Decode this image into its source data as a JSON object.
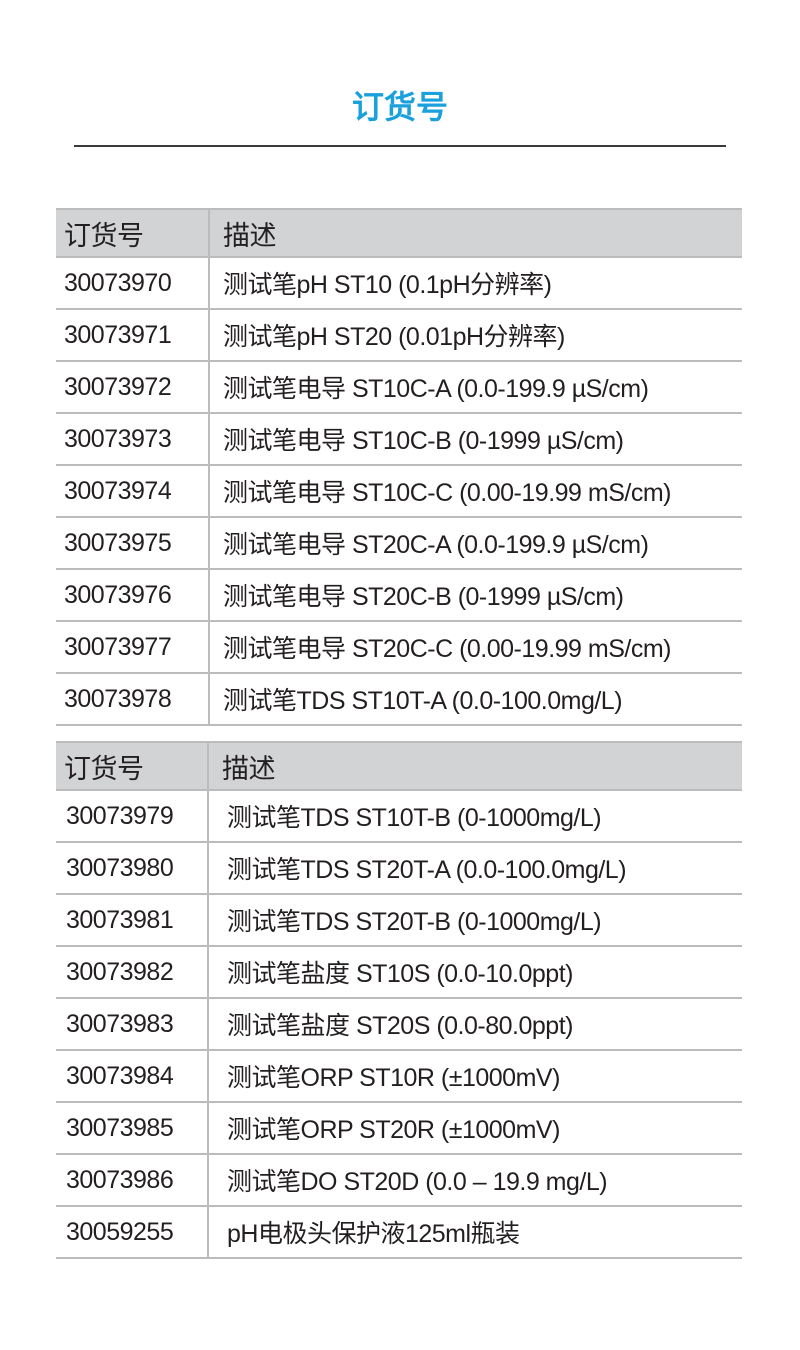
{
  "title": "订货号",
  "tables": [
    {
      "headers": [
        "订货号",
        "描述"
      ],
      "rows": [
        [
          "30073970",
          "测试笔pH ST10 (0.1pH分辨率)"
        ],
        [
          "30073971",
          "测试笔pH ST20 (0.01pH分辨率)"
        ],
        [
          "30073972",
          "测试笔电导 ST10C-A (0.0-199.9 µS/cm)"
        ],
        [
          "30073973",
          "测试笔电导 ST10C-B (0-1999 µS/cm)"
        ],
        [
          "30073974",
          "测试笔电导 ST10C-C (0.00-19.99 mS/cm)"
        ],
        [
          "30073975",
          "测试笔电导 ST20C-A (0.0-199.9 µS/cm)"
        ],
        [
          "30073976",
          "测试笔电导 ST20C-B (0-1999 µS/cm)"
        ],
        [
          "30073977",
          "测试笔电导 ST20C-C (0.00-19.99 mS/cm)"
        ],
        [
          "30073978",
          "测试笔TDS ST10T-A (0.0-100.0mg/L)"
        ]
      ]
    },
    {
      "headers": [
        "订货号",
        "描述"
      ],
      "rows": [
        [
          "30073979",
          "测试笔TDS ST10T-B (0-1000mg/L)"
        ],
        [
          "30073980",
          "测试笔TDS ST20T-A (0.0-100.0mg/L)"
        ],
        [
          "30073981",
          "测试笔TDS ST20T-B (0-1000mg/L)"
        ],
        [
          "30073982",
          "测试笔盐度 ST10S (0.0-10.0ppt)"
        ],
        [
          "30073983",
          "测试笔盐度 ST20S (0.0-80.0ppt)"
        ],
        [
          "30073984",
          "测试笔ORP ST10R (±1000mV)"
        ],
        [
          "30073985",
          "测试笔ORP ST20R (±1000mV)"
        ],
        [
          "30073986",
          "测试笔DO ST20D (0.0 – 19.9 mg/L)"
        ],
        [
          "30059255",
          "pH电极头保护液125ml瓶装"
        ]
      ]
    }
  ],
  "colors": {
    "title": "#1aa0dc",
    "header_bg": "#d2d3d5",
    "border": "#bcbcbc"
  }
}
